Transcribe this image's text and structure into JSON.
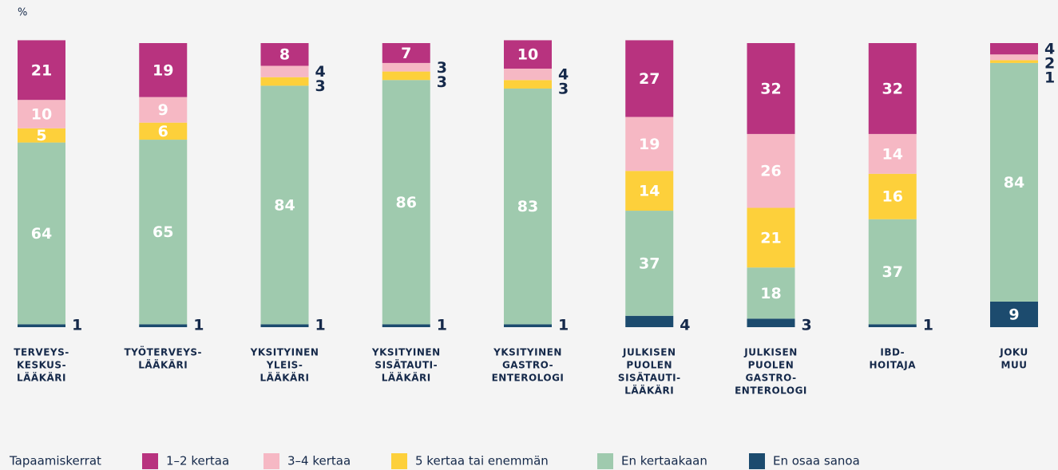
{
  "chart_data": {
    "type": "stacked-bar",
    "unit_label": "%",
    "legend_title": "Tapaamiskerrat",
    "categories": [
      [
        "TERVEYS-",
        "KESKUS-",
        "LÄÄKÄRI"
      ],
      [
        "TYÖTERVEYS-",
        "LÄÄKÄRI"
      ],
      [
        "YKSITYINEN",
        "YLEIS-",
        "LÄÄKÄRI"
      ],
      [
        "YKSITYINEN",
        "SISÄTAUTI-",
        "LÄÄKÄRI"
      ],
      [
        "YKSITYINEN",
        "GASTRO-",
        "ENTEROLOGI"
      ],
      [
        "JULKISEN",
        "PUOLEN",
        "SISÄTAUTI-",
        "LÄÄKÄRI"
      ],
      [
        "JULKISEN",
        "PUOLEN",
        "GASTRO-",
        "ENTEROLOGI"
      ],
      [
        "IBD-",
        "HOITAJA"
      ],
      [
        "JOKU",
        "MUU"
      ]
    ],
    "series": [
      {
        "name": "1–2 kertaa",
        "color": "#b8337f",
        "values": [
          21,
          19,
          8,
          7,
          10,
          27,
          32,
          32,
          4
        ]
      },
      {
        "name": "3–4 kertaa",
        "color": "#f6b8c4",
        "values": [
          10,
          9,
          4,
          3,
          4,
          19,
          26,
          14,
          2
        ]
      },
      {
        "name": "5 kertaa tai enemmän",
        "color": "#fdd03b",
        "values": [
          5,
          6,
          3,
          3,
          3,
          14,
          21,
          16,
          1
        ]
      },
      {
        "name": "En kertaakaan",
        "color": "#9fcaae",
        "values": [
          64,
          65,
          84,
          86,
          83,
          37,
          18,
          37,
          84
        ]
      },
      {
        "name": "En osaa sanoa",
        "color": "#1c4b6e",
        "values": [
          1,
          1,
          1,
          1,
          1,
          4,
          3,
          1,
          9
        ]
      }
    ],
    "ylim": [
      0,
      100
    ],
    "legend": "bottom-left"
  }
}
